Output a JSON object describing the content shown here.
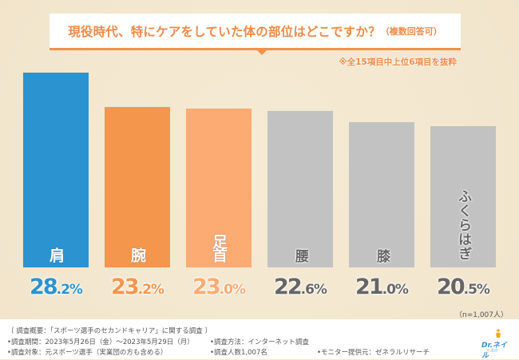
{
  "header": {
    "title": "現役時代、特にケアをしていた体の部位はどこですか？",
    "title_suffix": "（複数回答可）",
    "note": "※全15項目中上位6項目を抜粋"
  },
  "chart_data": {
    "type": "bar",
    "title": "現役時代、特にケアをしていた体の部位はどこですか？（複数回答可）",
    "xlabel": "",
    "ylabel": "",
    "ylim": [
      0,
      30
    ],
    "categories": [
      "肩",
      "腕",
      "足首",
      "腰",
      "膝",
      "ふくらはぎ"
    ],
    "values": [
      28.2,
      23.2,
      23.0,
      22.6,
      21.0,
      20.5
    ],
    "value_labels": [
      {
        "int": "28",
        "dec": ".2%"
      },
      {
        "int": "23",
        "dec": ".2%"
      },
      {
        "int": "23",
        "dec": ".0%"
      },
      {
        "int": "22",
        "dec": ".6%"
      },
      {
        "int": "21",
        "dec": ".0%"
      },
      {
        "int": "20",
        "dec": ".5%"
      }
    ],
    "colors": [
      "#2a93d0",
      "#f5964d",
      "#fcab73",
      "#c2c2c2",
      "#c2c2c2",
      "#c2c2c2"
    ],
    "text_colors": [
      "#2a93d0",
      "#f5964d",
      "#fcab73",
      "#666666",
      "#666666",
      "#666666"
    ],
    "grid": false,
    "legend": "none",
    "sample_note": "（n=1,007人）"
  },
  "footer": {
    "summary": "〔 調査概要：「スポーツ選手のセカンドキャリア」に関する調査 〕",
    "period": "•調査期間：2023年5月26日（金）〜2023年5月29日（月）",
    "method": "•調査方法：インターネット調査",
    "target": "•調査対象：元スポーツ選手（実業団の方も含める）",
    "count": "•調査人数1,007名",
    "provider": "•モニター提供元：ゼネラルリサーチ",
    "logo_text": "Dr.ネイル",
    "logo_sub": "爪革命"
  }
}
